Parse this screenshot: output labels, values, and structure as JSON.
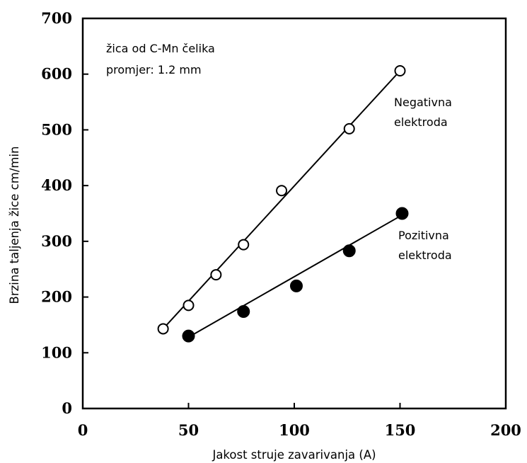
{
  "chart_data": {
    "type": "scatter",
    "xlabel": "Jakost struje zavarivanja (A)",
    "ylabel": "Brzina taljenja žice cm/min",
    "xlim": [
      0,
      200
    ],
    "ylim": [
      0,
      700
    ],
    "x_ticks": [
      "0",
      "50",
      "100",
      "150",
      "200"
    ],
    "y_ticks": [
      "0",
      "100",
      "200",
      "300",
      "400",
      "500",
      "600",
      "700"
    ],
    "annotation": {
      "line1": "žica od C-Mn čelika",
      "line2": "promjer: 1.2 mm"
    },
    "series": [
      {
        "name_line1": "Negativna",
        "name_line2": "elektroda",
        "marker": "open-circle",
        "points": [
          [
            38,
            143
          ],
          [
            50,
            185
          ],
          [
            63,
            240
          ],
          [
            76,
            294
          ],
          [
            94,
            391
          ],
          [
            126,
            502
          ],
          [
            150,
            606
          ]
        ],
        "fit": [
          [
            38,
            143
          ],
          [
            150,
            606
          ]
        ]
      },
      {
        "name_line1": "Pozitivna",
        "name_line2": "elektroda",
        "marker": "filled-circle",
        "points": [
          [
            50,
            130
          ],
          [
            76,
            174
          ],
          [
            101,
            220
          ],
          [
            126,
            283
          ],
          [
            151,
            350
          ]
        ],
        "fit": [
          [
            50,
            128
          ],
          [
            150,
            345
          ]
        ]
      }
    ],
    "grid": false,
    "legend": "inline"
  }
}
